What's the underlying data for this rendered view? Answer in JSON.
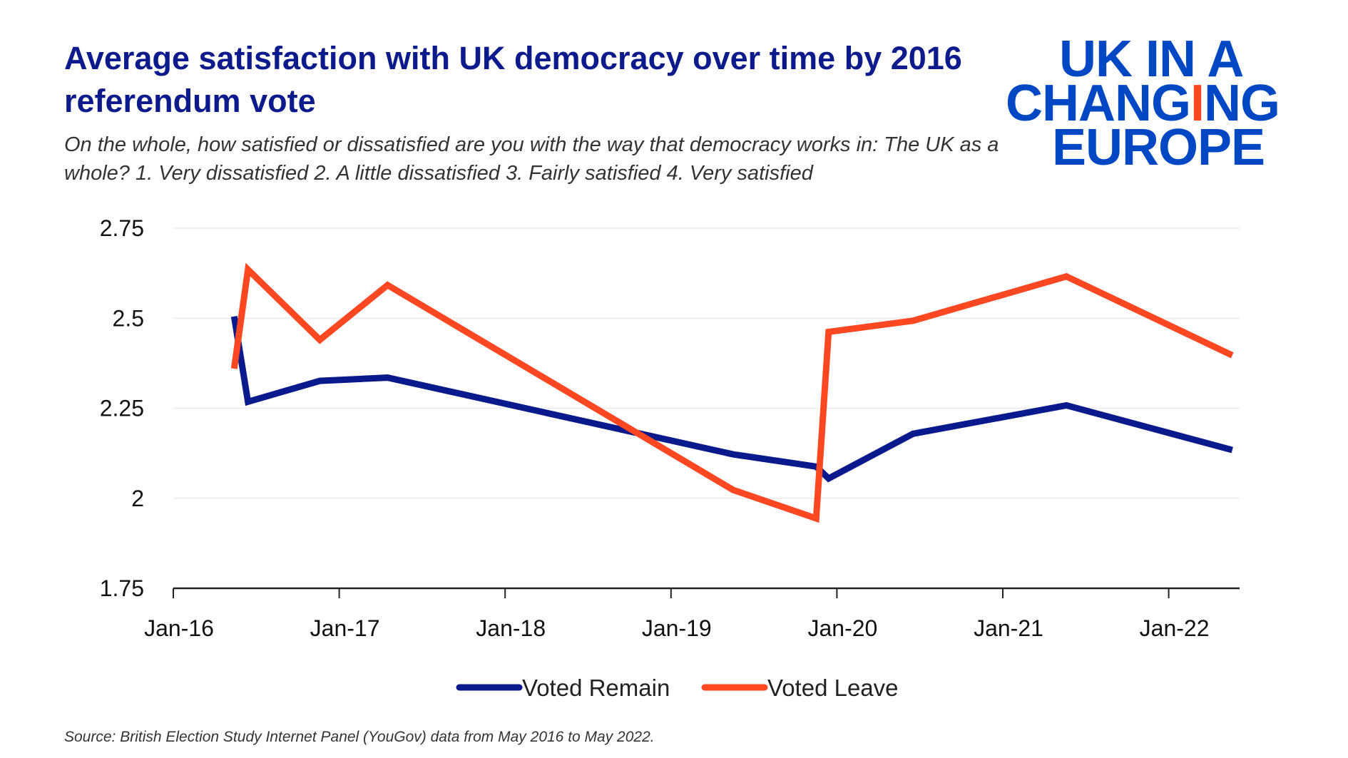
{
  "header": {
    "title": "Average satisfaction with UK democracy over time by 2016 referendum vote",
    "subtitle": "On the whole, how satisfied or dissatisfied are you with the way that democracy works in: The UK as a whole? 1. Very dissatisfied 2. A little dissatisfied 3. Fairly satisfied 4. Very satisfied"
  },
  "logo": {
    "line1": "UK IN A",
    "line2": "CHANGING",
    "line3": "EUROPE",
    "color": "#0047c4",
    "accent": "#ff4722"
  },
  "source": "Source: British Election Study Internet Panel (YouGov) data from May 2016 to May 2022.",
  "chart_data": {
    "type": "line",
    "title": "Average satisfaction with UK democracy over time by 2016 referendum vote",
    "xlabel": "",
    "ylabel": "",
    "x_unit": "months since Jan 2016",
    "xlim": [
      0,
      80
    ],
    "ylim": [
      1.75,
      2.75
    ],
    "yticks": [
      1.75,
      2,
      2.25,
      2.5,
      2.75
    ],
    "ytick_labels": [
      "1.75",
      "2",
      "2.25",
      "2.5",
      "2.75"
    ],
    "xticks": [
      0,
      12,
      24,
      36,
      48,
      60,
      72
    ],
    "xtick_labels": [
      "Jan-16",
      "Jan-17",
      "Jan-18",
      "Jan-19",
      "Jan-20",
      "Jan-21",
      "Jan-22"
    ],
    "grid": true,
    "legend_position": "bottom",
    "series": [
      {
        "name": "Voted Remain",
        "color": "#0a1a8c",
        "x": [
          4.4,
          5.4,
          10.6,
          15.5,
          40.5,
          46.5,
          47.4,
          53.5,
          64.6,
          76.6
        ],
        "y": [
          2.505,
          2.268,
          2.326,
          2.335,
          2.122,
          2.088,
          2.055,
          2.179,
          2.258,
          2.134
        ]
      },
      {
        "name": "Voted Leave",
        "color": "#ff4722",
        "x": [
          4.4,
          5.4,
          10.6,
          15.5,
          40.5,
          46.5,
          47.4,
          53.5,
          64.6,
          76.6
        ],
        "y": [
          2.36,
          2.635,
          2.44,
          2.592,
          2.023,
          1.944,
          2.462,
          2.493,
          2.616,
          2.397
        ]
      }
    ]
  }
}
